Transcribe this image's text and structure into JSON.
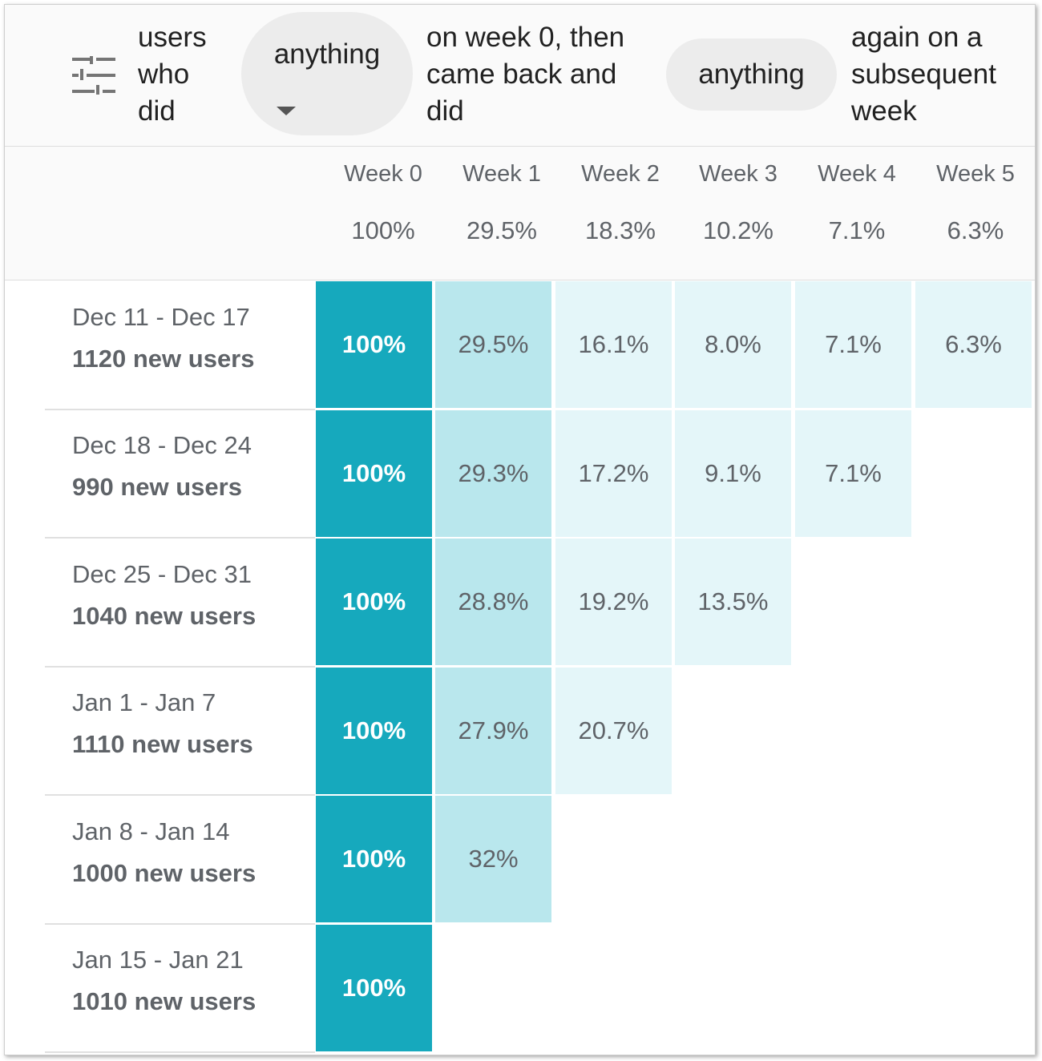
{
  "filter_bar": {
    "icon": "tune-sliders-icon",
    "prefix_lines": [
      "users",
      "who",
      "did"
    ],
    "first_event": "anything",
    "middle_lines": [
      "on week 0, then",
      "came back and",
      "did"
    ],
    "second_event": "anything",
    "suffix_lines": [
      "again on a",
      "subsequent",
      "week"
    ]
  },
  "summary": {
    "weeks": [
      "Week 0",
      "Week 1",
      "Week 2",
      "Week 3",
      "Week 4",
      "Week 5"
    ],
    "averages": [
      "100%",
      "29.5%",
      "18.3%",
      "10.2%",
      "7.1%",
      "6.3%"
    ]
  },
  "cohorts": [
    {
      "date": "Dec 11 - Dec 17",
      "users": "1120 new users",
      "values": [
        "100%",
        "29.5%",
        "16.1%",
        "8.0%",
        "7.1%",
        "6.3%"
      ]
    },
    {
      "date": "Dec 18 - Dec 24",
      "users": "990 new users",
      "values": [
        "100%",
        "29.3%",
        "17.2%",
        "9.1%",
        "7.1%"
      ]
    },
    {
      "date": "Dec 25 - Dec 31",
      "users": "1040 new users",
      "values": [
        "100%",
        "28.8%",
        "19.2%",
        "13.5%"
      ]
    },
    {
      "date": "Jan 1 - Jan 7",
      "users": "1110 new users",
      "values": [
        "100%",
        "27.9%",
        "20.7%"
      ]
    },
    {
      "date": "Jan 8 - Jan 14",
      "users": "1000 new users",
      "values": [
        "100%",
        "32%"
      ]
    },
    {
      "date": "Jan 15 - Jan 21",
      "users": "1010 new users",
      "values": [
        "100%"
      ]
    }
  ],
  "colors": {
    "week0": "#16a9bd",
    "high": "#b9e7ed",
    "low": "#e4f6f9"
  }
}
